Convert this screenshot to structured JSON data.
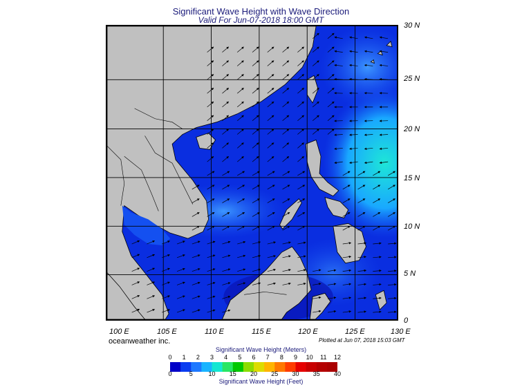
{
  "title": "Significant Wave Height with Wave Direction",
  "subtitle": "Valid For Jun-07-2018 18:00 GMT",
  "latitude_labels": [
    "30 N",
    "25 N",
    "20 N",
    "15 N",
    "10 N",
    "5 N",
    "0"
  ],
  "longitude_labels": [
    "100 E",
    "105 E",
    "110 E",
    "115 E",
    "120 E",
    "125 E",
    "130 E"
  ],
  "credit": "oceanweather inc.",
  "plotted_note": "Plotted at Jun 07, 2018 15:03 GMT",
  "colorbar": {
    "meters_title": "Significant Wave Height (Meters)",
    "feet_title": "Significant Wave Height (Feet)",
    "meters_ticks": [
      "0",
      "1",
      "2",
      "3",
      "4",
      "5",
      "6",
      "7",
      "8",
      "9",
      "10",
      "11",
      "12"
    ],
    "feet_ticks": [
      "0",
      "5",
      "10",
      "15",
      "20",
      "25",
      "30",
      "35",
      "40"
    ],
    "colors": [
      "#0000c8",
      "#0a3cf0",
      "#1e78ff",
      "#19b4ff",
      "#14e6d2",
      "#28e664",
      "#00c800",
      "#8cdc00",
      "#dcdc00",
      "#ffb400",
      "#ff7800",
      "#ff3c00",
      "#e60000",
      "#c80000",
      "#b40000",
      "#aa0000"
    ]
  },
  "map_colors": {
    "land": "#c0c0c0",
    "ocean_deep": "#0a28d2",
    "ocean_mid": "#1450f0",
    "ocean_light": "#2d8cff",
    "ocean_cyan": "#1ee6d7",
    "border": "#000000"
  }
}
